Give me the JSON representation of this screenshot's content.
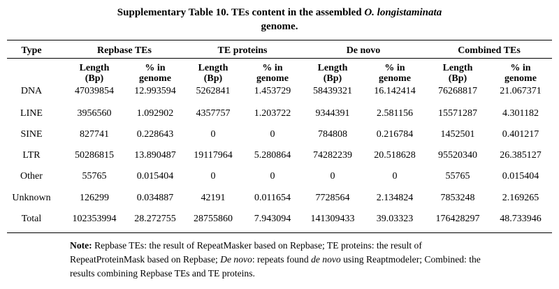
{
  "title": {
    "prefix": "Supplementary Table 10. TEs content in the assembled ",
    "italic": "O. longistaminata",
    "suffix": "genome."
  },
  "table": {
    "groups": [
      "Type",
      "Repbase TEs",
      "TE proteins",
      "De novo",
      "Combined TEs"
    ],
    "subheaders": [
      "Length (Bp)",
      "% in genome",
      "Length (Bp)",
      "% in genome",
      "Length (Bp)",
      "% in genome",
      "Length (Bp)",
      "% in genome"
    ],
    "rows": [
      [
        "DNA",
        "47039854",
        "12.993594",
        "5262841",
        "1.453729",
        "58439321",
        "16.142414",
        "76268817",
        "21.067371"
      ],
      [
        "LINE",
        "3956560",
        "1.092902",
        "4357757",
        "1.203722",
        "9344391",
        "2.581156",
        "15571287",
        "4.301182"
      ],
      [
        "SINE",
        "827741",
        "0.228643",
        "0",
        "0",
        "784808",
        "0.216784",
        "1452501",
        "0.401217"
      ],
      [
        "LTR",
        "50286815",
        "13.890487",
        "19117964",
        "5.280864",
        "74282239",
        "20.518628",
        "95520340",
        "26.385127"
      ],
      [
        "Other",
        "55765",
        "0.015404",
        "0",
        "0",
        "0",
        "0",
        "55765",
        "0.015404"
      ],
      [
        "Unknown",
        "126299",
        "0.034887",
        "42191",
        "0.011654",
        "7728564",
        "2.134824",
        "7853248",
        "2.169265"
      ],
      [
        "Total",
        "102353994",
        "28.272755",
        "28755860",
        "7.943094",
        "141309433",
        "39.03323",
        "176428297",
        "48.733946"
      ]
    ]
  },
  "note": {
    "segments": [
      "Note:",
      " Repbase TEs: the result of RepeatMasker based on Repbase; TE proteins: the result of RepeatProteinMask based on Repbase; ",
      "De novo",
      ": repeats found ",
      "de novo",
      " using Reaptmodeler; Combined: the results combining Repbase TEs and TE proteins."
    ]
  }
}
